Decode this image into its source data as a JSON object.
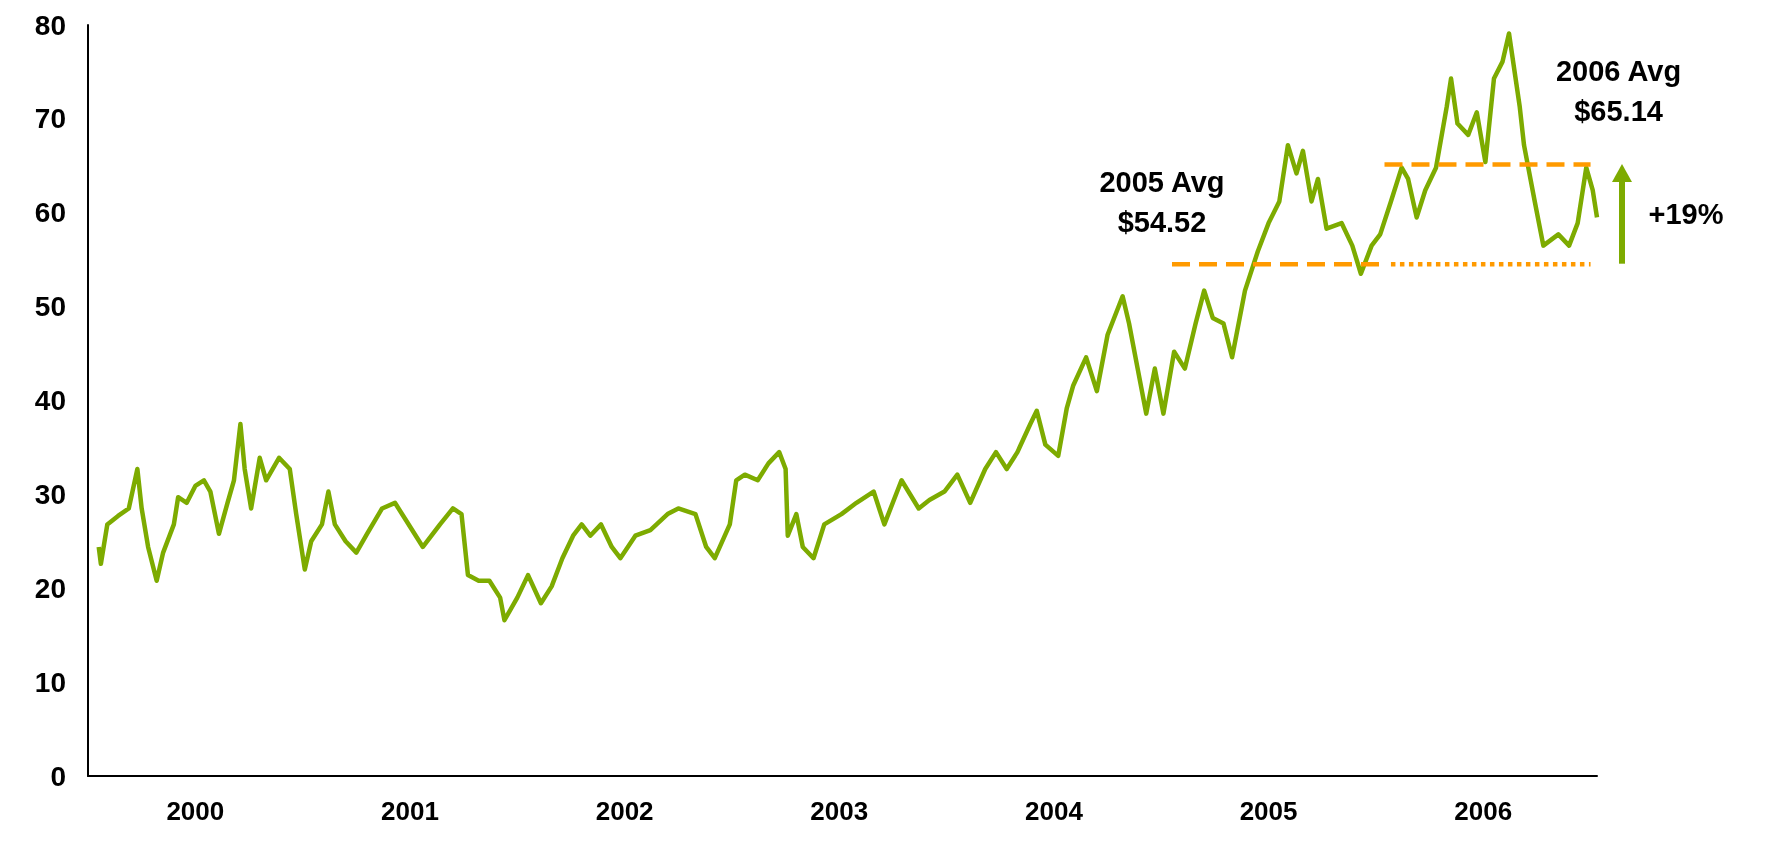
{
  "chart_data": {
    "type": "line",
    "xlim": [
      2000,
      2007.03
    ],
    "ylim": [
      0,
      80
    ],
    "yticks": [
      0,
      10,
      20,
      30,
      40,
      50,
      60,
      70,
      80
    ],
    "xticks": [
      {
        "value": 2000.5,
        "label": "2000"
      },
      {
        "value": 2001.5,
        "label": "2001"
      },
      {
        "value": 2002.5,
        "label": "2002"
      },
      {
        "value": 2003.5,
        "label": "2003"
      },
      {
        "value": 2004.5,
        "label": "2004"
      },
      {
        "value": 2005.5,
        "label": "2005"
      },
      {
        "value": 2006.5,
        "label": "2006"
      }
    ],
    "marker": "none",
    "series": [
      {
        "color": "#7dab00",
        "line_style": "solid",
        "x": [
          2000.05,
          2000.06,
          2000.09,
          2000.14,
          2000.19,
          2000.23,
          2000.25,
          2000.28,
          2000.32,
          2000.35,
          2000.4,
          2000.42,
          2000.46,
          2000.5,
          2000.54,
          2000.57,
          2000.61,
          2000.65,
          2000.68,
          2000.71,
          2000.73,
          2000.76,
          2000.8,
          2000.83,
          2000.89,
          2000.94,
          2000.97,
          2001.01,
          2001.04,
          2001.09,
          2001.12,
          2001.15,
          2001.2,
          2001.25,
          2001.3,
          2001.37,
          2001.43,
          2001.48,
          2001.56,
          2001.64,
          2001.7,
          2001.74,
          2001.77,
          2001.82,
          2001.87,
          2001.92,
          2001.94,
          2002,
          2002.05,
          2002.11,
          2002.16,
          2002.21,
          2002.26,
          2002.3,
          2002.34,
          2002.39,
          2002.44,
          2002.48,
          2002.55,
          2002.62,
          2002.7,
          2002.75,
          2002.83,
          2002.88,
          2002.92,
          2002.99,
          2003.02,
          2003.06,
          2003.12,
          2003.17,
          2003.22,
          2003.25,
          2003.26,
          2003.3,
          2003.33,
          2003.38,
          2003.43,
          2003.51,
          2003.58,
          2003.66,
          2003.71,
          2003.79,
          2003.87,
          2003.92,
          2003.99,
          2004.05,
          2004.11,
          2004.18,
          2004.23,
          2004.28,
          2004.33,
          2004.39,
          2004.42,
          2004.46,
          2004.52,
          2004.56,
          2004.59,
          2004.65,
          2004.7,
          2004.75,
          2004.82,
          2004.85,
          2004.89,
          2004.93,
          2004.97,
          2005.01,
          2005.06,
          2005.11,
          2005.16,
          2005.2,
          2005.24,
          2005.29,
          2005.33,
          2005.39,
          2005.45,
          2005.5,
          2005.55,
          2005.59,
          2005.63,
          2005.66,
          2005.7,
          2005.73,
          2005.77,
          2005.84,
          2005.89,
          2005.93,
          2005.98,
          2006.02,
          2006.07,
          2006.12,
          2006.15,
          2006.19,
          2006.23,
          2006.28,
          2006.33,
          2006.35,
          2006.38,
          2006.43,
          2006.47,
          2006.51,
          2006.55,
          2006.59,
          2006.62,
          2006.67,
          2006.69,
          2006.74,
          2006.78,
          2006.85,
          2006.9,
          2006.94,
          2006.98,
          2007.01,
          2007.03
        ],
        "values": [
          24.4,
          22.6,
          26.8,
          27.7,
          28.5,
          32.7,
          28.5,
          24.4,
          20.8,
          23.8,
          26.8,
          29.7,
          29.1,
          30.9,
          31.5,
          30.3,
          25.8,
          29.1,
          31.5,
          37.5,
          32.7,
          28.5,
          33.9,
          31.5,
          33.9,
          32.7,
          27.9,
          22,
          25,
          26.8,
          30.3,
          26.8,
          25,
          23.8,
          25.8,
          28.5,
          29.1,
          27.3,
          24.4,
          26.8,
          28.5,
          27.9,
          21.4,
          20.8,
          20.8,
          19,
          16.6,
          19,
          21.4,
          18.4,
          20.2,
          23.2,
          25.6,
          26.8,
          25.6,
          26.8,
          24.4,
          23.2,
          25.6,
          26.2,
          27.9,
          28.5,
          27.9,
          24.4,
          23.2,
          26.8,
          31.5,
          32.1,
          31.5,
          33.3,
          34.5,
          32.7,
          25.6,
          27.9,
          24.4,
          23.2,
          26.8,
          27.9,
          29.1,
          30.3,
          26.8,
          31.5,
          28.5,
          29.4,
          30.3,
          32.1,
          29.1,
          32.7,
          34.5,
          32.7,
          34.5,
          37.5,
          38.9,
          35.3,
          34.1,
          39.2,
          41.6,
          44.6,
          41,
          47,
          51.1,
          48.2,
          43.4,
          38.6,
          43.4,
          38.6,
          45.2,
          43.4,
          48.2,
          51.7,
          48.8,
          48.2,
          44.6,
          51.7,
          55.9,
          58.9,
          61.2,
          67.2,
          64.2,
          66.6,
          61.2,
          63.6,
          58.3,
          58.9,
          56.5,
          53.5,
          56.5,
          57.7,
          61.2,
          64.8,
          63.6,
          59.5,
          62.4,
          64.8,
          71.3,
          74.3,
          69.5,
          68.3,
          70.7,
          65.4,
          74.3,
          76.1,
          79.1,
          71.3,
          67.2,
          61.2,
          56.5,
          57.7,
          56.5,
          58.9,
          64.8,
          62.4,
          59.5
        ]
      },
      {
        "color": "#ff9a00",
        "line_style": "dashed",
        "x": [
          2005.05,
          2006.02
        ],
        "values": [
          54.52,
          54.52
        ]
      },
      {
        "color": "#ff9a00",
        "line_style": "dotted",
        "x": [
          2006.07,
          2007.0
        ],
        "values": [
          54.52,
          54.52
        ]
      },
      {
        "color": "#ff9a00",
        "line_style": "dashed",
        "x": [
          2006.04,
          2007.0
        ],
        "values": [
          65.14,
          65.14
        ]
      }
    ],
    "annotations": [
      {
        "text": "2005 Avg\n$54.52",
        "x": 2005.05,
        "y": 54.52
      },
      {
        "text": "2006 Avg\n$65.14",
        "x": 2007.0,
        "y": 65.14
      },
      "+19%"
    ]
  }
}
